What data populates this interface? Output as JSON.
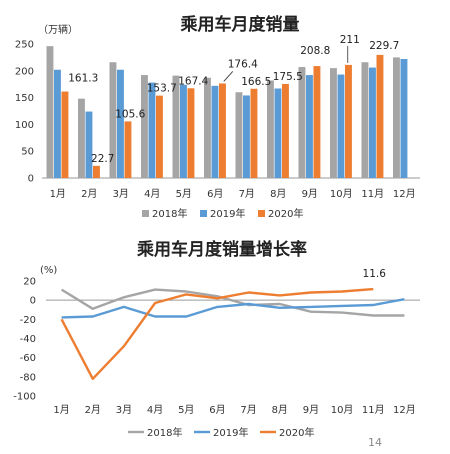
{
  "page_number": "14",
  "colors": {
    "2018": "#a5a5a5",
    "2019": "#5b9bd5",
    "2020": "#ed7d31",
    "axis": "#9a9a9a"
  },
  "chart_data": [
    {
      "type": "bar",
      "title": "乘用车月度销量",
      "unit_label": "（万辆）",
      "categories": [
        "1月",
        "2月",
        "3月",
        "4月",
        "5月",
        "6月",
        "7月",
        "8月",
        "9月",
        "10月",
        "11月",
        "12月"
      ],
      "ylim": [
        0,
        250
      ],
      "yticks": [
        0,
        50,
        100,
        150,
        200,
        250
      ],
      "grid": false,
      "legend_position": "bottom",
      "series": [
        {
          "name": "2018年",
          "values": [
            246,
            148,
            216,
            192,
            191,
            187,
            160,
            182,
            207,
            205,
            216,
            225
          ]
        },
        {
          "name": "2019年",
          "values": [
            202,
            124,
            202,
            178,
            174,
            172,
            154,
            167,
            192,
            193,
            206,
            222
          ]
        },
        {
          "name": "2020年",
          "values": [
            161.3,
            22.7,
            105.6,
            153.7,
            167.4,
            176.4,
            166.5,
            175.5,
            208.8,
            211,
            229.7,
            null
          ]
        }
      ],
      "data_labels": [
        {
          "series": "2020年",
          "month": "1月",
          "text": "161.3"
        },
        {
          "series": "2020年",
          "month": "2月",
          "text": "22.7"
        },
        {
          "series": "2020年",
          "month": "3月",
          "text": "105.6"
        },
        {
          "series": "2020年",
          "month": "4月",
          "text": "153.7"
        },
        {
          "series": "2020年",
          "month": "5月",
          "text": "167.4"
        },
        {
          "series": "2020年",
          "month": "6月",
          "text": "176.4"
        },
        {
          "series": "2020年",
          "month": "7月",
          "text": "166.5"
        },
        {
          "series": "2020年",
          "month": "8月",
          "text": "175.5"
        },
        {
          "series": "2020年",
          "month": "9月",
          "text": "208.8"
        },
        {
          "series": "2020年",
          "month": "10月",
          "text": "211"
        },
        {
          "series": "2020年",
          "month": "11月",
          "text": "229.7"
        }
      ]
    },
    {
      "type": "line",
      "title": "乘用车月度销量增长率",
      "unit_label": "(%)",
      "categories": [
        "1月",
        "2月",
        "3月",
        "4月",
        "5月",
        "6月",
        "7月",
        "8月",
        "9月",
        "10月",
        "11月",
        "12月"
      ],
      "ylim": [
        -100,
        20
      ],
      "yticks": [
        -100,
        -80,
        -60,
        -40,
        -20,
        0,
        20
      ],
      "grid": false,
      "legend_position": "bottom",
      "series": [
        {
          "name": "2018年",
          "values": [
            11,
            -9,
            3,
            11,
            9,
            4,
            -5,
            -4,
            -12,
            -13,
            -16,
            -16
          ]
        },
        {
          "name": "2019年",
          "values": [
            -18,
            -17,
            -7,
            -17,
            -17,
            -7,
            -4,
            -8,
            -7,
            -6,
            -5,
            1
          ]
        },
        {
          "name": "2020年",
          "values": [
            -20,
            -82,
            -48,
            -3,
            6,
            2,
            8,
            5,
            8,
            9,
            11.6,
            null
          ]
        }
      ],
      "data_labels": [
        {
          "series": "2020年",
          "month": "11月",
          "text": "11.6"
        }
      ]
    }
  ]
}
